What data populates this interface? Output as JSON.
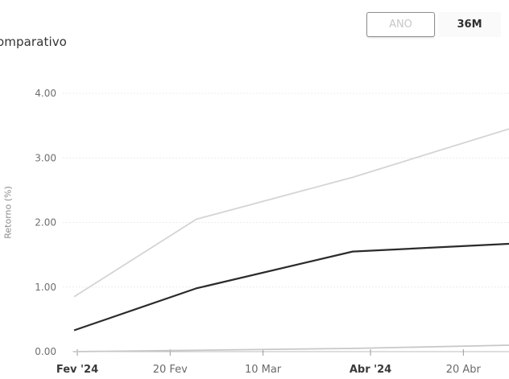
{
  "header": {
    "title": "omparativo",
    "range_buttons": [
      {
        "label": "ANO",
        "selected": true
      },
      {
        "label": "36M",
        "selected": false
      }
    ]
  },
  "chart_data": {
    "type": "line",
    "ylabel": "Retorno (%)",
    "ylim": [
      0,
      4.2
    ],
    "y_ticks": [
      "0.00",
      "1.00",
      "2.00",
      "3.00",
      "4.00"
    ],
    "x_ticks": [
      {
        "label": "Fev '24",
        "bold": true
      },
      {
        "label": "20 Fev",
        "bold": false
      },
      {
        "label": "10 Mar",
        "bold": false
      },
      {
        "label": "Abr '24",
        "bold": true
      },
      {
        "label": "20 Abr",
        "bold": false
      }
    ],
    "x_tick_dates": [
      "2024-02-01",
      "2024-02-20",
      "2024-03-10",
      "2024-04-01",
      "2024-04-20"
    ],
    "x_range": [
      "2024-02-01",
      "2024-04-30"
    ],
    "grid": true,
    "series": [
      {
        "color": "#d4d4d4",
        "points": [
          [
            "2024-02-01",
            0.85
          ],
          [
            "2024-02-26",
            2.05
          ],
          [
            "2024-03-29",
            2.7
          ],
          [
            "2024-04-30",
            3.45
          ]
        ]
      },
      {
        "color": "#2b2b2b",
        "points": [
          [
            "2024-02-01",
            0.33
          ],
          [
            "2024-02-26",
            0.98
          ],
          [
            "2024-03-29",
            1.55
          ],
          [
            "2024-04-30",
            1.67
          ]
        ]
      },
      {
        "color": "#c8c8c8",
        "points": [
          [
            "2024-02-01",
            0.0
          ],
          [
            "2024-03-29",
            0.05
          ],
          [
            "2024-04-30",
            0.1
          ]
        ]
      }
    ]
  }
}
